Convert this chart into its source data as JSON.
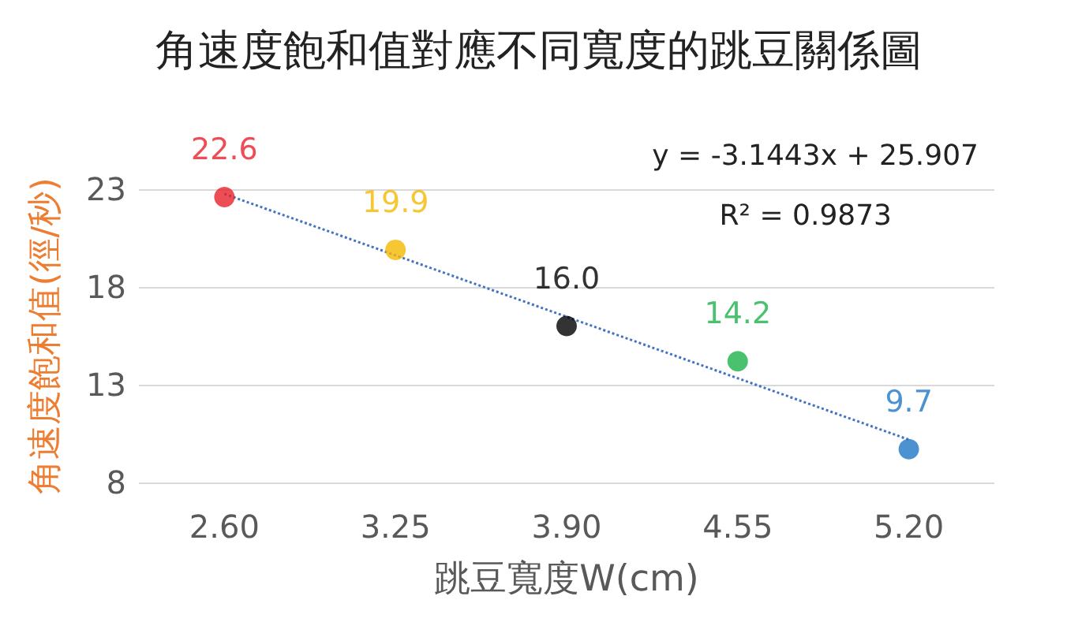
{
  "chart_data": {
    "type": "scatter",
    "title": "角速度飽和值對應不同寬度的跳豆關係圖",
    "xlabel": "跳豆寬度W(cm)",
    "ylabel": "角速度飽和值(徑/秒)",
    "categories": [
      "2.60",
      "3.25",
      "3.90",
      "4.55",
      "5.20"
    ],
    "series": [
      {
        "values": [
          22.6,
          19.9,
          16.0,
          14.2,
          9.7
        ],
        "value_labels": [
          "22.6",
          "19.9",
          "16.0",
          "14.2",
          "9.7"
        ],
        "colors": [
          "#e8202a",
          "#f5b800",
          "#000000",
          "#1db14b",
          "#1f77c4"
        ],
        "marker": "circle"
      },
      {
        "type": "line",
        "x": [
          "2.60",
          "5.20"
        ],
        "values": [
          22.76,
          10.19
        ],
        "color": "#4472c4",
        "line_style": "dotted",
        "marker": "none"
      }
    ],
    "ylim": [
      8,
      23
    ],
    "yticks": [
      8,
      13,
      18,
      23
    ],
    "grid": "y",
    "annotations": [
      "y = -3.1443x + 25.907",
      "R² = 0.9873"
    ]
  }
}
